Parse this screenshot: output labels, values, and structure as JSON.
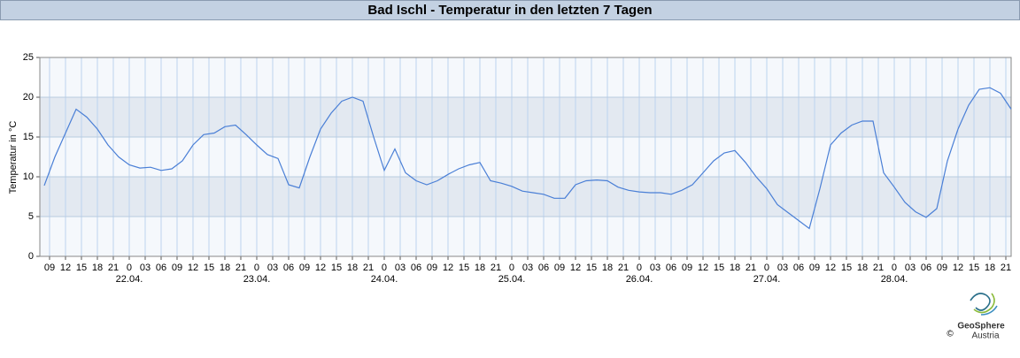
{
  "chart_data": {
    "type": "line",
    "title": "Bad Ischl - Temperatur in den letzten 7 Tagen",
    "y_label": "Temperatur in °C",
    "color": "#4a7fd6",
    "grid": true,
    "shaded_bands": true,
    "x": [
      -16,
      -14,
      -12,
      -10,
      -8,
      -6,
      -4,
      -2,
      0,
      2,
      4,
      6,
      8,
      10,
      12,
      14,
      16,
      18,
      20,
      22,
      24,
      26,
      28,
      30,
      32,
      34,
      36,
      38,
      40,
      42,
      44,
      46,
      48,
      50,
      52,
      54,
      56,
      58,
      60,
      62,
      64,
      66,
      68,
      70,
      72,
      74,
      76,
      78,
      80,
      82,
      84,
      86,
      88,
      90,
      92,
      94,
      96,
      98,
      100,
      102,
      104,
      106,
      108,
      110,
      112,
      114,
      116,
      118,
      120,
      122,
      124,
      126,
      128,
      130,
      132,
      134,
      136,
      138,
      140,
      142,
      144,
      146,
      148,
      150,
      152,
      154,
      156,
      158,
      160,
      162,
      164,
      166
    ],
    "values": [
      8.9,
      12.5,
      15.5,
      18.5,
      17.5,
      16.0,
      14.0,
      12.5,
      11.5,
      11.1,
      11.2,
      10.8,
      11.0,
      12.0,
      14.0,
      15.3,
      15.5,
      16.3,
      16.5,
      15.3,
      14.0,
      12.8,
      12.3,
      9.0,
      8.6,
      12.5,
      16.0,
      18.0,
      19.5,
      20.0,
      19.5,
      15.0,
      10.8,
      13.5,
      10.5,
      9.5,
      9.0,
      9.5,
      10.3,
      11.0,
      11.5,
      11.8,
      9.5,
      9.2,
      8.8,
      8.2,
      8.0,
      7.8,
      7.3,
      7.3,
      9.0,
      9.5,
      9.6,
      9.5,
      8.7,
      8.3,
      8.1,
      8.0,
      8.0,
      7.8,
      8.3,
      9.0,
      10.5,
      12.0,
      13.0,
      13.3,
      11.8,
      10.0,
      8.5,
      6.5,
      5.5,
      4.5,
      3.5,
      8.5,
      14.0,
      15.5,
      16.5,
      17.0,
      17.0,
      10.5,
      8.7,
      6.8,
      5.6,
      4.9,
      6.0,
      12.0,
      16.0,
      19.0,
      21.0,
      21.2,
      20.5,
      18.5
    ],
    "xlim": [
      -16.83,
      166
    ],
    "ylim": [
      0,
      25
    ],
    "yticks": [
      0,
      5,
      10,
      15,
      20,
      25
    ],
    "xticks": [
      {
        "value": -15,
        "label": "09"
      },
      {
        "value": -12,
        "label": "12"
      },
      {
        "value": -9,
        "label": "15"
      },
      {
        "value": -6,
        "label": "18"
      },
      {
        "value": -3,
        "label": "21"
      },
      {
        "value": 0,
        "label": "0"
      },
      {
        "value": 3,
        "label": "03"
      },
      {
        "value": 6,
        "label": "06"
      },
      {
        "value": 9,
        "label": "09"
      },
      {
        "value": 12,
        "label": "12"
      },
      {
        "value": 15,
        "label": "15"
      },
      {
        "value": 18,
        "label": "18"
      },
      {
        "value": 21,
        "label": "21"
      },
      {
        "value": 24,
        "label": "0"
      },
      {
        "value": 27,
        "label": "03"
      },
      {
        "value": 30,
        "label": "06"
      },
      {
        "value": 33,
        "label": "09"
      },
      {
        "value": 36,
        "label": "12"
      },
      {
        "value": 39,
        "label": "15"
      },
      {
        "value": 42,
        "label": "18"
      },
      {
        "value": 45,
        "label": "21"
      },
      {
        "value": 48,
        "label": "0"
      },
      {
        "value": 51,
        "label": "03"
      },
      {
        "value": 54,
        "label": "06"
      },
      {
        "value": 57,
        "label": "09"
      },
      {
        "value": 60,
        "label": "12"
      },
      {
        "value": 63,
        "label": "15"
      },
      {
        "value": 66,
        "label": "18"
      },
      {
        "value": 69,
        "label": "21"
      },
      {
        "value": 72,
        "label": "0"
      },
      {
        "value": 75,
        "label": "03"
      },
      {
        "value": 78,
        "label": "06"
      },
      {
        "value": 81,
        "label": "09"
      },
      {
        "value": 84,
        "label": "12"
      },
      {
        "value": 87,
        "label": "15"
      },
      {
        "value": 90,
        "label": "18"
      },
      {
        "value": 93,
        "label": "21"
      },
      {
        "value": 96,
        "label": "0"
      },
      {
        "value": 99,
        "label": "03"
      },
      {
        "value": 102,
        "label": "06"
      },
      {
        "value": 105,
        "label": "09"
      },
      {
        "value": 108,
        "label": "12"
      },
      {
        "value": 111,
        "label": "15"
      },
      {
        "value": 114,
        "label": "18"
      },
      {
        "value": 117,
        "label": "21"
      },
      {
        "value": 120,
        "label": "0"
      },
      {
        "value": 123,
        "label": "03"
      },
      {
        "value": 126,
        "label": "06"
      },
      {
        "value": 129,
        "label": "09"
      },
      {
        "value": 132,
        "label": "12"
      },
      {
        "value": 135,
        "label": "15"
      },
      {
        "value": 138,
        "label": "18"
      },
      {
        "value": 141,
        "label": "21"
      },
      {
        "value": 144,
        "label": "0"
      },
      {
        "value": 147,
        "label": "03"
      },
      {
        "value": 150,
        "label": "06"
      },
      {
        "value": 153,
        "label": "09"
      },
      {
        "value": 156,
        "label": "12"
      },
      {
        "value": 159,
        "label": "15"
      },
      {
        "value": 162,
        "label": "18"
      },
      {
        "value": 165,
        "label": "21"
      }
    ],
    "x_date_labels": [
      {
        "value": 0,
        "label": "22.04."
      },
      {
        "value": 24,
        "label": "23.04."
      },
      {
        "value": 48,
        "label": "24.04."
      },
      {
        "value": 72,
        "label": "25.04."
      },
      {
        "value": 96,
        "label": "26.04."
      },
      {
        "value": 120,
        "label": "27.04."
      },
      {
        "value": 144,
        "label": "28.04."
      }
    ]
  },
  "footer": {
    "logo_name": "GeoSphere",
    "logo_sub": "Austria",
    "copyright": "©"
  }
}
